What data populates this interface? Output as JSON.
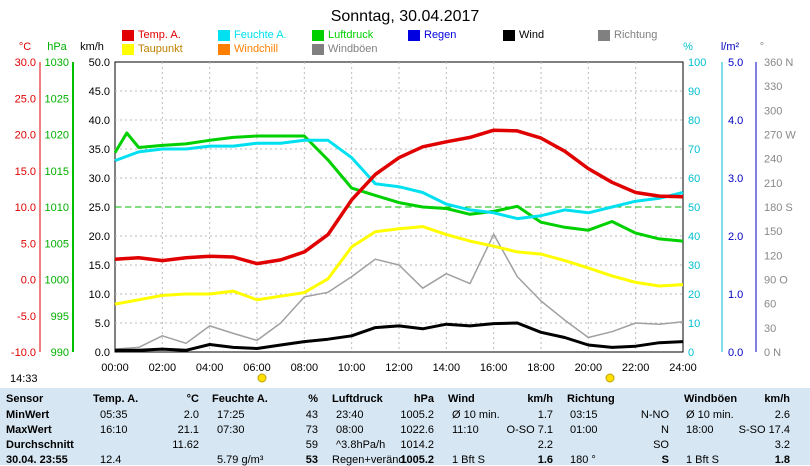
{
  "title": "Sonntag, 30.04.2017",
  "axis_units": {
    "temp": "°C",
    "pressure": "hPa",
    "wind": "km/h",
    "humidity": "%",
    "rain": "l/m²",
    "direction": "°"
  },
  "legend": [
    {
      "label": "Temp. A.",
      "color": "#e00000"
    },
    {
      "label": "Feuchte A.",
      "color": "#00e0f0"
    },
    {
      "label": "Luftdruck",
      "color": "#00d000"
    },
    {
      "label": "Regen",
      "color": "#0000e0"
    },
    {
      "label": "Wind",
      "color": "#000000"
    },
    {
      "label": "Richtung",
      "color": "#808080"
    },
    {
      "label": "Taupunkt",
      "color": "#ffff00"
    },
    {
      "label": "Windchill",
      "color": "#ff8000"
    },
    {
      "label": "Windböen",
      "color": "#808080"
    }
  ],
  "time_marker": "14:33",
  "chart_data": {
    "type": "line",
    "x_ticks": [
      "00:00",
      "02:00",
      "04:00",
      "06:00",
      "08:00",
      "10:00",
      "12:00",
      "14:00",
      "16:00",
      "18:00",
      "20:00",
      "22:00",
      "24:00"
    ],
    "axes": {
      "wind": {
        "ticks": [
          "0.0",
          "5.0",
          "10.0",
          "15.0",
          "20.0",
          "25.0",
          "30.0",
          "35.0",
          "40.0",
          "45.0",
          "50.0"
        ],
        "range": [
          0,
          50
        ]
      },
      "temp": {
        "ticks": [
          "-10.0",
          "-5.0",
          "0.0",
          "5.0",
          "10.0",
          "15.0",
          "20.0",
          "25.0",
          "30.0"
        ],
        "range": [
          -10,
          30
        ]
      },
      "pressure": {
        "ticks": [
          "990",
          "995",
          "1000",
          "1005",
          "1010",
          "1015",
          "1020",
          "1025",
          "1030"
        ],
        "range": [
          990,
          1030
        ]
      },
      "humidity": {
        "ticks": [
          "0",
          "10",
          "20",
          "30",
          "40",
          "50",
          "60",
          "70",
          "80",
          "90",
          "100"
        ],
        "range": [
          0,
          100
        ]
      },
      "rain": {
        "ticks": [
          "0.0",
          "1.0",
          "2.0",
          "3.0",
          "4.0",
          "5.0"
        ],
        "range": [
          0,
          5
        ]
      },
      "direction": {
        "ticks": [
          "0 N",
          "30",
          "60",
          "90 O",
          "120",
          "150",
          "180 S",
          "210",
          "240",
          "270 W",
          "300",
          "330",
          "360 N"
        ],
        "range": [
          0,
          360
        ]
      }
    },
    "reference_line_temp": 10,
    "series": [
      {
        "name": "Temp. A.",
        "axis": "temp",
        "color": "#e00000",
        "x": [
          0,
          1,
          2,
          3,
          4,
          5,
          6,
          7,
          8,
          9,
          10,
          11,
          12,
          13,
          14,
          15,
          16,
          17,
          18,
          19,
          20,
          21,
          22,
          23,
          24
        ],
        "y": [
          2.8,
          3.0,
          2.6,
          3.0,
          3.2,
          3.1,
          2.2,
          2.7,
          3.8,
          6.2,
          11.0,
          14.5,
          16.8,
          18.3,
          19.0,
          19.6,
          20.6,
          20.5,
          19.5,
          17.7,
          15.3,
          13.4,
          12.0,
          11.5,
          11.4
        ]
      },
      {
        "name": "Feuchte A.",
        "axis": "humidity",
        "color": "#00e0f0",
        "x": [
          0,
          1,
          2,
          3,
          4,
          5,
          6,
          7,
          8,
          9,
          10,
          11,
          12,
          13,
          14,
          15,
          16,
          17,
          18,
          19,
          20,
          21,
          22,
          23,
          24
        ],
        "y": [
          66,
          69,
          70,
          70,
          71,
          71,
          72,
          72,
          73,
          73,
          67,
          58,
          57,
          55,
          51,
          49,
          48,
          46,
          47,
          49,
          48,
          50,
          52,
          53,
          55
        ]
      },
      {
        "name": "Luftdruck",
        "axis": "pressure",
        "color": "#00d000",
        "x": [
          0,
          0.5,
          1,
          2,
          3,
          4,
          5,
          6,
          7,
          8,
          9,
          10,
          11,
          12,
          13,
          14,
          15,
          16,
          17,
          18,
          19,
          20,
          21,
          22,
          23,
          24
        ],
        "y": [
          1017.5,
          1020.2,
          1018.2,
          1018.5,
          1018.7,
          1019.2,
          1019.6,
          1019.8,
          1019.8,
          1019.8,
          1016.5,
          1012.6,
          1011.6,
          1010.6,
          1010.0,
          1009.8,
          1009.0,
          1009.4,
          1010.1,
          1007.9,
          1007.2,
          1006.8,
          1008.0,
          1006.4,
          1005.6,
          1005.3
        ]
      },
      {
        "name": "Taupunkt",
        "axis": "temp",
        "color": "#ffff00",
        "x": [
          0,
          1,
          2,
          3,
          4,
          5,
          6,
          7,
          8,
          9,
          10,
          11,
          12,
          13,
          14,
          15,
          16,
          17,
          18,
          19,
          20,
          21,
          22,
          23,
          24
        ],
        "y": [
          -3.4,
          -2.8,
          -2.2,
          -2.0,
          -2.0,
          -1.6,
          -2.8,
          -2.3,
          -1.8,
          0.1,
          4.5,
          6.6,
          7.0,
          7.3,
          6.2,
          5.3,
          4.6,
          3.8,
          3.5,
          2.6,
          1.6,
          0.5,
          -0.4,
          -0.9,
          -0.7
        ]
      },
      {
        "name": "Wind",
        "axis": "wind",
        "color": "#000000",
        "x": [
          0,
          1,
          2,
          3,
          4,
          5,
          6,
          7,
          8,
          9,
          10,
          11,
          12,
          13,
          14,
          15,
          16,
          17,
          18,
          19,
          20,
          21,
          22,
          23,
          24
        ],
        "y": [
          0.3,
          0.3,
          0.5,
          0.3,
          1.3,
          0.8,
          0.6,
          1.2,
          1.8,
          2.2,
          2.8,
          4.2,
          4.5,
          4.0,
          4.8,
          4.5,
          4.9,
          5.0,
          3.4,
          2.5,
          1.2,
          0.8,
          1.0,
          1.6,
          1.8
        ]
      },
      {
        "name": "Windböen",
        "axis": "wind",
        "color": "#a0a0a0",
        "x": [
          0,
          1,
          2,
          3,
          4,
          5,
          6,
          7,
          8,
          9,
          10,
          11,
          12,
          13,
          14,
          15,
          16,
          17,
          18,
          19,
          20,
          21,
          22,
          23,
          24
        ],
        "y": [
          0.5,
          0.8,
          2.8,
          1.5,
          4.5,
          3.2,
          2.0,
          5.0,
          9.5,
          10.3,
          13.0,
          16.0,
          15.0,
          11.0,
          13.5,
          11.8,
          20.3,
          13.0,
          8.8,
          5.5,
          2.5,
          3.5,
          5.0,
          4.8,
          5.2
        ]
      }
    ]
  },
  "table": {
    "headers": [
      "Sensor",
      "Temp. A.",
      "°C",
      "Feuchte A.",
      "%",
      "Luftdruck",
      "hPa",
      "Wind",
      "km/h",
      "Richtung",
      "Windböen",
      "km/h"
    ],
    "rows": [
      {
        "label": "MinWert",
        "cells": [
          "05:35",
          "2.0",
          "17:25",
          "43",
          "23:40",
          "1005.2",
          "Ø 10 min.",
          "1.7",
          "03:15",
          "N-NO",
          "Ø 10 min.",
          "2.6"
        ]
      },
      {
        "label": "MaxWert",
        "cells": [
          "16:10",
          "21.1",
          "07:30",
          "73",
          "08:00",
          "1022.6",
          "11:10",
          "O-SO 7.1",
          "01:00",
          "N",
          "18:00",
          "S-SO 17.4"
        ]
      },
      {
        "label": "Durchschnitt",
        "cells": [
          "",
          "11.62",
          "",
          "59",
          "^3.8hPa/h",
          "1014.2",
          "",
          "2.2",
          "",
          "SO",
          "",
          "3.2"
        ]
      },
      {
        "label": "30.04. 23:55",
        "cells": [
          "",
          "12.4",
          "",
          "5.79 g/m³",
          "53",
          "Regen+veränd.",
          "1005.2",
          "1 Bft S",
          "1.6",
          "180 °",
          "S",
          "1 Bft S",
          "1.8"
        ]
      }
    ]
  }
}
